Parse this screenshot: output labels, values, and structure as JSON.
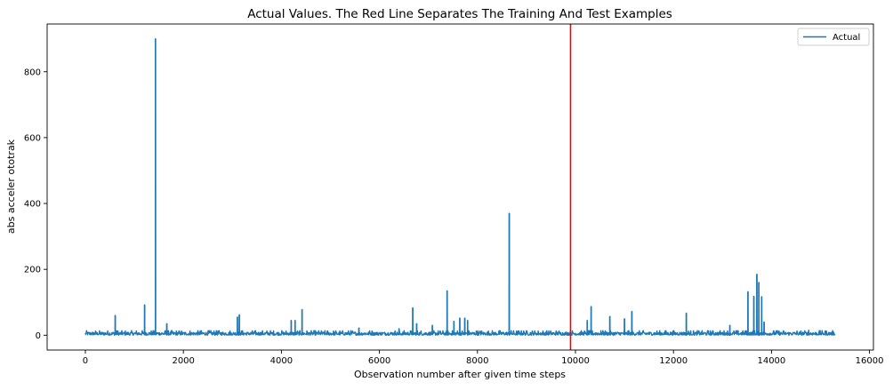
{
  "chart_data": {
    "type": "line",
    "title": "Actual Values. The Red Line Separates The Training And Test Examples",
    "xlabel": "Observation number after given time steps",
    "ylabel": "abs acceler ototrak",
    "xlim": [
      -780,
      16080
    ],
    "ylim": [
      -45,
      945
    ],
    "xticks": [
      0,
      2000,
      4000,
      6000,
      8000,
      10000,
      12000,
      14000,
      16000
    ],
    "yticks": [
      0,
      200,
      400,
      600,
      800
    ],
    "grid": false,
    "legend": {
      "placement": "top-right",
      "entries": [
        {
          "name": "Actual",
          "color": "#1f77b4"
        }
      ]
    },
    "split_line": {
      "x": 9900,
      "color": "#ff0000"
    },
    "series": [
      {
        "name": "Actual",
        "color": "#1f77b4",
        "baseline_noise": {
          "x_start": 0,
          "x_end": 15300,
          "max": 10
        },
        "spikes": [
          {
            "x": 610,
            "y": 60
          },
          {
            "x": 1210,
            "y": 92
          },
          {
            "x": 1430,
            "y": 900
          },
          {
            "x": 1660,
            "y": 35
          },
          {
            "x": 3100,
            "y": 55
          },
          {
            "x": 3140,
            "y": 62
          },
          {
            "x": 4200,
            "y": 45
          },
          {
            "x": 4280,
            "y": 45
          },
          {
            "x": 4420,
            "y": 78
          },
          {
            "x": 5580,
            "y": 22
          },
          {
            "x": 6400,
            "y": 20
          },
          {
            "x": 6680,
            "y": 83
          },
          {
            "x": 6760,
            "y": 35
          },
          {
            "x": 7080,
            "y": 30
          },
          {
            "x": 7380,
            "y": 135
          },
          {
            "x": 7520,
            "y": 42
          },
          {
            "x": 7640,
            "y": 52
          },
          {
            "x": 7740,
            "y": 52
          },
          {
            "x": 7800,
            "y": 45
          },
          {
            "x": 8650,
            "y": 370
          },
          {
            "x": 10240,
            "y": 45
          },
          {
            "x": 10320,
            "y": 87
          },
          {
            "x": 10700,
            "y": 57
          },
          {
            "x": 11000,
            "y": 50
          },
          {
            "x": 11150,
            "y": 72
          },
          {
            "x": 12260,
            "y": 67
          },
          {
            "x": 13150,
            "y": 30
          },
          {
            "x": 13520,
            "y": 132
          },
          {
            "x": 13640,
            "y": 118
          },
          {
            "x": 13700,
            "y": 185
          },
          {
            "x": 13740,
            "y": 160
          },
          {
            "x": 13800,
            "y": 117
          },
          {
            "x": 13850,
            "y": 40
          },
          {
            "x": 14760,
            "y": 15
          }
        ]
      }
    ]
  }
}
